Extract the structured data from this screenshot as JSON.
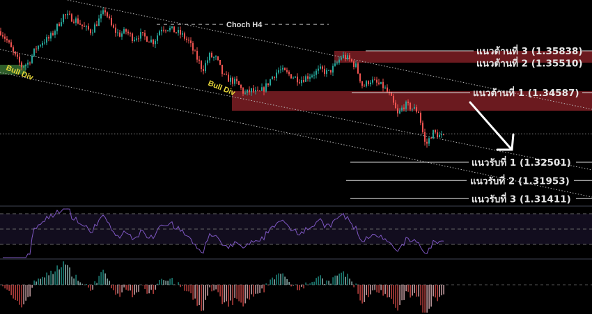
{
  "chart_data": {
    "type": "candlestick",
    "title": "",
    "colors": {
      "up": "#26a69a",
      "down": "#ef5350",
      "zone": "#6b1a1f",
      "bull_zone": "#2e5d2a",
      "rsi": "#7e57c2",
      "level": "#e6e6e6",
      "label_div": "#e8d83a"
    },
    "close_path": [
      1.36422,
      1.36109,
      1.35692,
      1.35379,
      1.35483,
      1.359,
      1.36109,
      1.36213,
      1.36526,
      1.36901,
      1.36839,
      1.36735,
      1.36526,
      1.36422,
      1.36735,
      1.37047,
      1.36526,
      1.36317,
      1.36422,
      1.36213,
      1.36317,
      1.36213,
      1.36109,
      1.36526,
      1.36526,
      1.36422,
      1.36317,
      1.36109,
      1.35692,
      1.35275,
      1.35692,
      1.35588,
      1.35066,
      1.34962,
      1.34858,
      1.34545,
      1.34649,
      1.34545,
      1.34753,
      1.35066,
      1.35275,
      1.3517,
      1.35066,
      1.34962,
      1.35066,
      1.3517,
      1.35275,
      1.3517,
      1.35379,
      1.35692,
      1.35588,
      1.35379,
      1.34753,
      1.34962,
      1.34858,
      1.34753,
      1.34441,
      1.33919,
      1.34232,
      1.34128,
      1.34023,
      1.32981,
      1.33398,
      1.33293
    ],
    "current_price": 1.3335,
    "levels": {
      "r3": {
        "label": "แนวต้านที่ 3 (1.35838)",
        "price": 1.35838
      },
      "r2": {
        "label": "แนวต้านที่ 2 (1.35510)",
        "price": 1.3551
      },
      "r1": {
        "label": "แนวต้านที่ 1 (1.34587)",
        "price": 1.34587
      },
      "s1": {
        "label": "แนวรับที่ 1 (1.32501)",
        "price": 1.32501
      },
      "s2": {
        "label": "แนวรับที่ 2 (1.31953)",
        "price": 1.31953
      },
      "s3": {
        "label": "แนวรับที่ 3 (1.31411)",
        "price": 1.31411
      }
    },
    "annotations": {
      "choch": "Choch H4",
      "bull_div_1": "Bull Div",
      "bull_div_2": "Bull Div"
    },
    "rsi_levels": [
      70,
      50,
      30
    ]
  }
}
